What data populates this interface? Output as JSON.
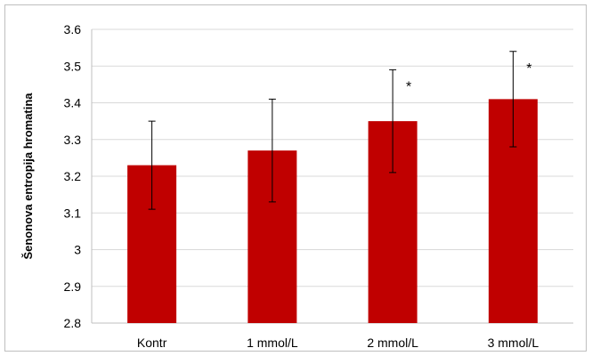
{
  "chart_data": {
    "type": "bar",
    "categories": [
      "Kontr",
      "1 mmol/L",
      "2 mmol/L",
      "3 mmol/L"
    ],
    "series": [
      {
        "values": [
          3.23,
          3.27,
          3.35,
          3.41
        ],
        "errors": [
          0.12,
          0.14,
          0.14,
          0.13
        ],
        "color": "#c00000"
      }
    ],
    "annotations": [
      "",
      "",
      "*",
      "*"
    ],
    "title": "",
    "xlabel": "",
    "ylabel": "Šenonova entropija hromatina",
    "ylim": [
      2.8,
      3.6
    ],
    "yticks": [
      "2.8",
      "2.9",
      "3",
      "3.1",
      "3.2",
      "3.3",
      "3.4",
      "3.5",
      "3.6"
    ],
    "grid": true,
    "legend": "none",
    "gridline_color": "#d9d9d9",
    "axis_color": "#bfbfbf"
  }
}
